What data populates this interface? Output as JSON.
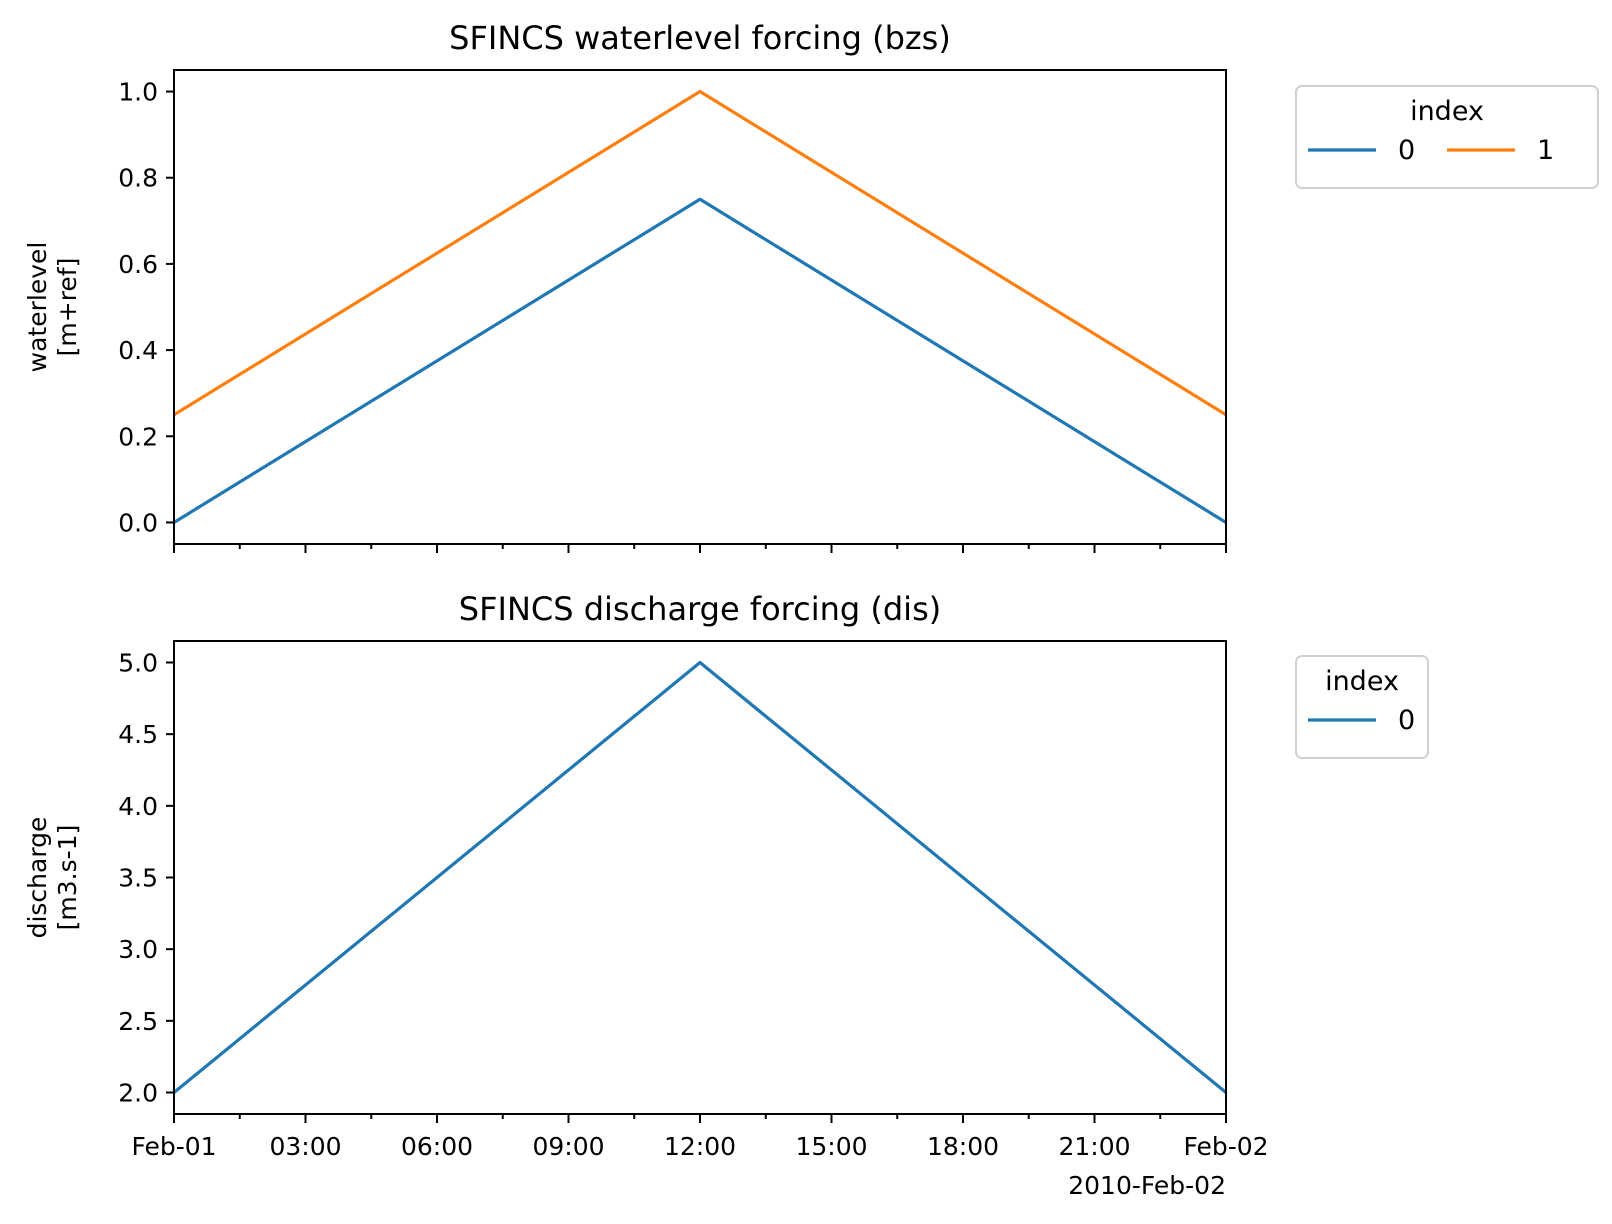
{
  "chart_data": [
    {
      "type": "line",
      "title": "SFINCS waterlevel forcing (bzs)",
      "ylabel_lines": [
        "waterlevel",
        "[m+ref]"
      ],
      "ylim": [
        -0.05,
        1.05
      ],
      "yticks": [
        {
          "value": 0.0,
          "label": "0.0"
        },
        {
          "value": 0.2,
          "label": "0.2"
        },
        {
          "value": 0.4,
          "label": "0.4"
        },
        {
          "value": 0.6,
          "label": "0.6"
        },
        {
          "value": 0.8,
          "label": "0.8"
        },
        {
          "value": 1.0,
          "label": "1.0"
        }
      ],
      "x_hours": [
        0,
        12,
        24
      ],
      "legend": {
        "title": "index",
        "placement": "outside-right",
        "columns": 2
      },
      "series": [
        {
          "name": "0",
          "color": "#1f77b4",
          "values": [
            0.0,
            0.75,
            0.0
          ]
        },
        {
          "name": "1",
          "color": "#ff7f0e",
          "values": [
            0.25,
            1.0,
            0.25
          ]
        }
      ]
    },
    {
      "type": "line",
      "title": "SFINCS discharge forcing (dis)",
      "ylabel_lines": [
        "discharge",
        "[m3.s-1]"
      ],
      "ylim": [
        1.85,
        5.15
      ],
      "yticks": [
        {
          "value": 2.0,
          "label": "2.0"
        },
        {
          "value": 2.5,
          "label": "2.5"
        },
        {
          "value": 3.0,
          "label": "3.0"
        },
        {
          "value": 3.5,
          "label": "3.5"
        },
        {
          "value": 4.0,
          "label": "4.0"
        },
        {
          "value": 4.5,
          "label": "4.5"
        },
        {
          "value": 5.0,
          "label": "5.0"
        }
      ],
      "x_hours": [
        0,
        12,
        24
      ],
      "legend": {
        "title": "index",
        "placement": "outside-right",
        "columns": 1
      },
      "series": [
        {
          "name": "0",
          "color": "#1f77b4",
          "values": [
            2.0,
            5.0,
            2.0
          ]
        }
      ]
    }
  ],
  "x_axis": {
    "range_hours": [
      0,
      24
    ],
    "major_ticks": [
      {
        "hour": 0,
        "label": "Feb-01"
      },
      {
        "hour": 3,
        "label": "03:00"
      },
      {
        "hour": 6,
        "label": "06:00"
      },
      {
        "hour": 9,
        "label": "09:00"
      },
      {
        "hour": 12,
        "label": "12:00"
      },
      {
        "hour": 15,
        "label": "15:00"
      },
      {
        "hour": 18,
        "label": "18:00"
      },
      {
        "hour": 21,
        "label": "21:00"
      },
      {
        "hour": 24,
        "label": "Feb-02"
      }
    ],
    "minor_tick_hours": [
      1.5,
      4.5,
      7.5,
      10.5,
      13.5,
      16.5,
      19.5,
      22.5
    ],
    "offset_label": "2010-Feb-02"
  }
}
